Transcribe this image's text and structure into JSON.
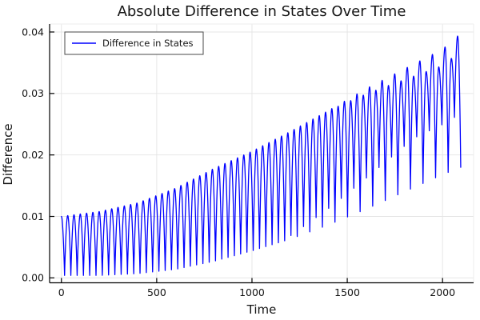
{
  "chart_data": {
    "type": "line",
    "title": "Absolute Difference in States Over Time",
    "xlabel": "Time",
    "ylabel": "Difference",
    "grid": true,
    "xlim": [
      -62,
      2163
    ],
    "ylim": [
      -0.0008,
      0.0413
    ],
    "x_ticks": [
      0,
      500,
      1000,
      1500,
      2000
    ],
    "x_tick_labels": [
      "0",
      "500",
      "1000",
      "1500",
      "2000"
    ],
    "y_ticks": [
      0,
      0.01,
      0.02,
      0.03,
      0.04
    ],
    "y_tick_labels": [
      "0.00",
      "0.01",
      "0.02",
      "0.03",
      "0.04"
    ],
    "legend": {
      "position": "top-left",
      "entries": [
        {
          "label": "Difference in States",
          "color": "#0000ff"
        }
      ]
    },
    "colors": {
      "series": "#0000ff",
      "grid": "#e4e4e4",
      "axis": "#000000",
      "frame_faint": "#ededed",
      "text": "#151515",
      "legend_border": "#4a4a4a"
    },
    "series": [
      {
        "name": "Difference in States",
        "color": "#0000ff",
        "description": "Absolute difference between two oscillating states; rapid oscillation whose upper envelope grows from 0.01 to 0.04 and lower envelope grows from ~0.0004 to ~0.018 over time 0..2096",
        "t_start": 0,
        "t_end": 2096,
        "oscillation_period": 33,
        "upper_envelope": [
          [
            0,
            0.01
          ],
          [
            200,
            0.0108
          ],
          [
            400,
            0.0122
          ],
          [
            600,
            0.0146
          ],
          [
            800,
            0.0178
          ],
          [
            1000,
            0.0206
          ],
          [
            1200,
            0.0238
          ],
          [
            1400,
            0.0272
          ],
          [
            1600,
            0.0308
          ],
          [
            1800,
            0.034
          ],
          [
            2000,
            0.0372
          ],
          [
            2096,
            0.0398
          ]
        ],
        "lower_envelope": [
          [
            0,
            0.0004
          ],
          [
            200,
            0.0004
          ],
          [
            400,
            0.0007
          ],
          [
            600,
            0.0014
          ],
          [
            800,
            0.0027
          ],
          [
            1000,
            0.0044
          ],
          [
            1200,
            0.0063
          ],
          [
            1400,
            0.0086
          ],
          [
            1600,
            0.0112
          ],
          [
            1800,
            0.014
          ],
          [
            2000,
            0.0168
          ],
          [
            2096,
            0.018
          ]
        ],
        "secondary_minimum": {
          "ramp_start": 1150,
          "ramp_end": 1850,
          "max_fraction": 0.4
        },
        "secondary_peak_drop": {
          "ramp_start": 1400,
          "ramp_end": 2000,
          "max_fraction": 0.13
        }
      }
    ]
  }
}
